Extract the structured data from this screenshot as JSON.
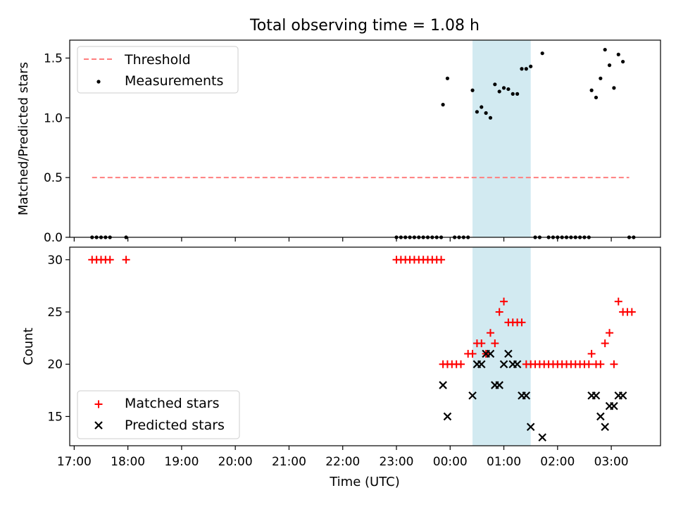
{
  "chart_data": [
    {
      "type": "scatter",
      "title": "Total observing time = 1.08 h",
      "xlabel": "",
      "ylabel": "Matched/Predicted stars",
      "ylim": [
        0,
        1.65
      ],
      "yticks": [
        0.0,
        0.5,
        1.0,
        1.5
      ],
      "ytick_labels": [
        "0.0",
        "0.5",
        "1.0",
        "1.5"
      ],
      "legend_position": "upper-left",
      "series": [
        {
          "name": "Threshold",
          "kind": "dashed-line",
          "color": "#ff7f7f",
          "x": [
            "17:20",
            "03:20"
          ],
          "y": [
            0.5,
            0.5
          ]
        },
        {
          "name": "Measurements",
          "kind": "dots",
          "color": "#000000",
          "x": [
            "17:20",
            "17:25",
            "17:30",
            "17:35",
            "17:40",
            "17:58",
            "23:00",
            "23:05",
            "23:10",
            "23:15",
            "23:20",
            "23:25",
            "23:30",
            "23:35",
            "23:40",
            "23:45",
            "23:50",
            "23:52",
            "23:57",
            "00:05",
            "00:10",
            "00:15",
            "00:20",
            "00:25",
            "00:30",
            "00:35",
            "00:40",
            "00:45",
            "00:50",
            "00:55",
            "01:00",
            "01:05",
            "01:10",
            "01:15",
            "01:20",
            "01:25",
            "01:30",
            "01:35",
            "01:40",
            "01:43",
            "01:50",
            "01:55",
            "02:00",
            "02:05",
            "02:10",
            "02:15",
            "02:20",
            "02:25",
            "02:30",
            "02:35",
            "02:38",
            "02:43",
            "02:48",
            "02:53",
            "02:58",
            "03:03",
            "03:08",
            "03:13",
            "03:20",
            "03:25"
          ],
          "y": [
            0,
            0,
            0,
            0,
            0,
            0,
            0,
            0,
            0,
            0,
            0,
            0,
            0,
            0,
            0,
            0,
            0,
            1.11,
            1.33,
            0,
            0,
            0,
            0,
            1.23,
            1.05,
            1.09,
            1.04,
            1.0,
            1.28,
            1.22,
            1.25,
            1.24,
            1.2,
            1.2,
            1.41,
            1.41,
            1.43,
            0,
            0,
            1.54,
            0,
            0,
            0,
            0,
            0,
            0,
            0,
            0,
            0,
            0,
            1.23,
            1.17,
            1.33,
            1.57,
            1.44,
            1.25,
            1.53,
            1.47,
            0,
            0
          ]
        }
      ]
    },
    {
      "type": "scatter",
      "title": "",
      "xlabel": "Time (UTC)",
      "ylabel": "Count",
      "ylim": [
        12.2,
        31.2
      ],
      "yticks": [
        15,
        20,
        25,
        30
      ],
      "ytick_labels": [
        "15",
        "20",
        "25",
        "30"
      ],
      "xlim": [
        "16:55",
        "03:55"
      ],
      "xticks": [
        "17:00",
        "18:00",
        "19:00",
        "20:00",
        "21:00",
        "22:00",
        "23:00",
        "00:00",
        "01:00",
        "02:00",
        "03:00"
      ],
      "legend_position": "lower-left",
      "series": [
        {
          "name": "Matched stars",
          "marker": "+",
          "color": "#ff0000",
          "x": [
            "17:20",
            "17:25",
            "17:30",
            "17:35",
            "17:40",
            "17:58",
            "23:00",
            "23:05",
            "23:10",
            "23:15",
            "23:20",
            "23:25",
            "23:30",
            "23:35",
            "23:40",
            "23:45",
            "23:50",
            "23:52",
            "23:57",
            "00:02",
            "00:07",
            "00:12",
            "00:20",
            "00:25",
            "00:30",
            "00:35",
            "00:40",
            "00:45",
            "00:50",
            "00:55",
            "01:00",
            "01:05",
            "01:10",
            "01:15",
            "01:20",
            "01:25",
            "01:30",
            "01:35",
            "01:40",
            "01:45",
            "01:50",
            "01:55",
            "02:00",
            "02:05",
            "02:10",
            "02:15",
            "02:20",
            "02:25",
            "02:30",
            "02:35",
            "02:38",
            "02:43",
            "02:48",
            "02:53",
            "02:58",
            "03:03",
            "03:08",
            "03:13",
            "03:18",
            "03:23"
          ],
          "y": [
            30,
            30,
            30,
            30,
            30,
            30,
            30,
            30,
            30,
            30,
            30,
            30,
            30,
            30,
            30,
            30,
            30,
            20,
            20,
            20,
            20,
            20,
            21,
            21,
            22,
            22,
            21,
            23,
            22,
            25,
            26,
            24,
            24,
            24,
            24,
            20,
            20,
            20,
            20,
            20,
            20,
            20,
            20,
            20,
            20,
            20,
            20,
            20,
            20,
            20,
            21,
            20,
            20,
            22,
            23,
            20,
            26,
            25,
            25,
            25
          ]
        },
        {
          "name": "Predicted stars",
          "marker": "x",
          "color": "#000000",
          "x": [
            "23:52",
            "23:57",
            "00:25",
            "00:30",
            "00:35",
            "00:40",
            "00:45",
            "00:50",
            "00:55",
            "01:00",
            "01:05",
            "01:10",
            "01:15",
            "01:20",
            "01:25",
            "01:30",
            "01:43",
            "02:38",
            "02:43",
            "02:48",
            "02:53",
            "02:58",
            "03:03",
            "03:08",
            "03:13"
          ],
          "y": [
            18,
            15,
            17,
            20,
            20,
            21,
            21,
            18,
            18,
            20,
            21,
            20,
            20,
            17,
            17,
            14,
            13,
            17,
            17,
            15,
            14,
            16,
            16,
            17,
            17
          ]
        }
      ]
    }
  ],
  "shared": {
    "highlight_span": [
      "00:25",
      "01:30"
    ],
    "highlight_color": "#add8e6"
  }
}
